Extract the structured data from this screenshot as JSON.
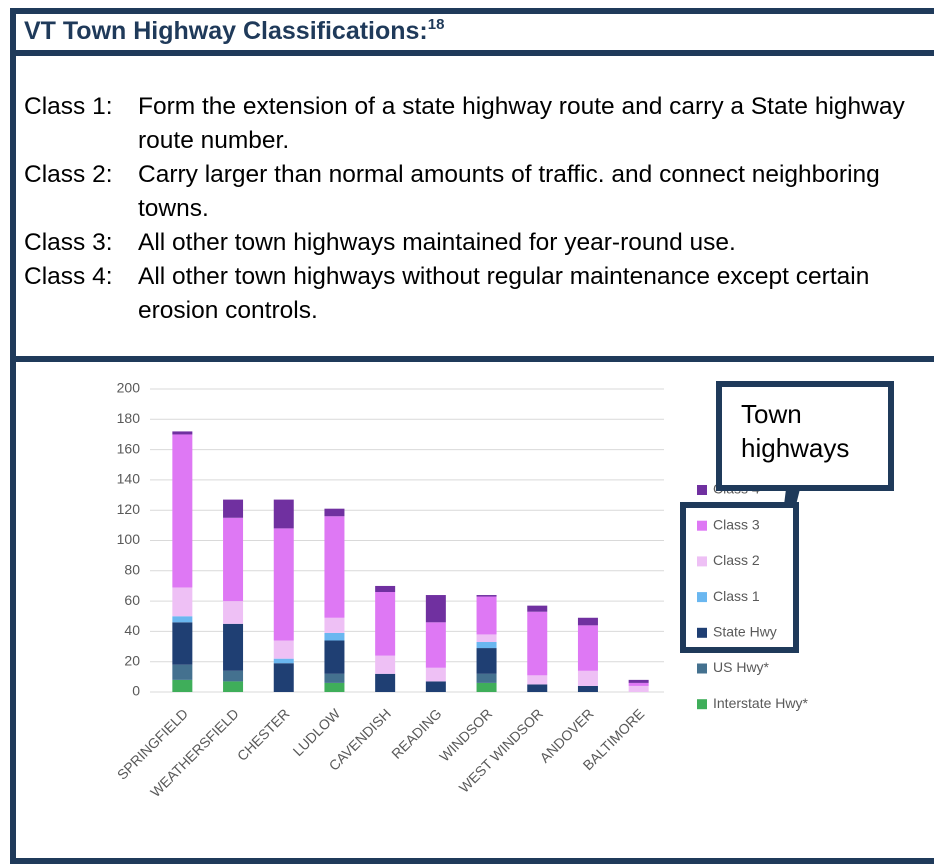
{
  "header": {
    "title": "VT Town Highway Classifications:",
    "note": "18"
  },
  "classes": [
    {
      "label": "Class 1:",
      "description": "Form the extension of a state highway route and carry a State highway route number."
    },
    {
      "label": "Class 2:",
      "description": "Carry larger than normal amounts of traffic. and connect neighboring towns."
    },
    {
      "label": "Class 3:",
      "description": "All other town highways maintained for year-round use."
    },
    {
      "label": "Class 4:",
      "description": "All other town highways without regular maintenance except certain erosion controls."
    }
  ],
  "callout": "Town highways",
  "chart_data": {
    "type": "stacked_bar",
    "categories": [
      "SPRINGFIELD",
      "WEATHERSFIELD",
      "CHESTER",
      "LUDLOW",
      "CAVENDISH",
      "READING",
      "WINDSOR",
      "WEST WINDSOR",
      "ANDOVER",
      "BALTIMORE"
    ],
    "series": [
      {
        "name": "Interstate Hwy*",
        "color": "#3fae5a",
        "values": [
          8,
          7,
          0,
          6,
          0,
          0,
          6,
          0,
          0,
          0
        ]
      },
      {
        "name": "US Hwy*",
        "color": "#44718f",
        "values": [
          10,
          7,
          0,
          6,
          0,
          0,
          6,
          0,
          0,
          0
        ]
      },
      {
        "name": "State Hwy",
        "color": "#1f3f73",
        "values": [
          28,
          31,
          19,
          22,
          12,
          7,
          17,
          5,
          4,
          0
        ]
      },
      {
        "name": "Class 1",
        "color": "#6ab7f0",
        "values": [
          4,
          0,
          3,
          5,
          0,
          0,
          4,
          0,
          0,
          0
        ]
      },
      {
        "name": "Class 2",
        "color": "#eec0f5",
        "values": [
          19,
          15,
          12,
          10,
          12,
          9,
          5,
          6,
          10,
          4
        ]
      },
      {
        "name": "Class 3",
        "color": "#de78f4",
        "values": [
          101,
          55,
          74,
          67,
          42,
          30,
          25,
          42,
          30,
          2
        ]
      },
      {
        "name": "Class 4",
        "color": "#7030a0",
        "values": [
          2,
          12,
          19,
          5,
          4,
          18,
          1,
          4,
          5,
          2
        ]
      }
    ],
    "ylim": [
      0,
      200
    ],
    "yticks": [
      0,
      20,
      40,
      60,
      80,
      100,
      120,
      140,
      160,
      180,
      200
    ],
    "grid": true,
    "legend": "right"
  }
}
